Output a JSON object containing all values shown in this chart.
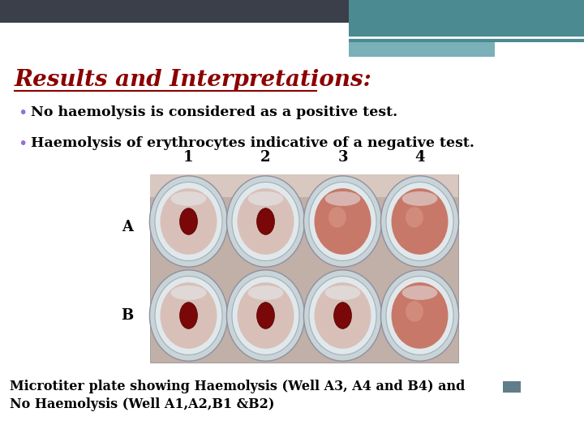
{
  "title": "Results and Interpretations:",
  "title_color": "#8B0000",
  "title_fontsize": 20,
  "bullet1": "No haemolysis is considered as a positive test.",
  "bullet2": "Haemolysis of erythrocytes indicative of a negative test.",
  "bullet_fontsize": 12.5,
  "bullet_color": "#000000",
  "bullet_dot_color": "#9370DB",
  "col_labels": [
    "1",
    "2",
    "3",
    "4"
  ],
  "row_labels": [
    "A",
    "B"
  ],
  "caption_line1": "Microtiter plate showing Haemolysis (Well A3, A4 and B4) and",
  "caption_line2": "No Haemolysis (Well A1,A2,B1 &B2)",
  "caption_fontsize": 11.5,
  "header_dark": "#3a3f4a",
  "header_teal1": "#4a8a90",
  "header_teal2": "#7ab0b8",
  "header_white_line": "#ffffff",
  "well_configs": [
    [
      false,
      false,
      true,
      true
    ],
    [
      false,
      false,
      false,
      true
    ]
  ],
  "plate_bg": "#c8b0a8",
  "well_outer": "#b8c8cc",
  "well_inner_clear": "#d4e0e4",
  "well_content_haemo": "#c87060",
  "well_content_no_haemo": "#c87060",
  "well_button_color": "#8B1010",
  "well_haemo_center": "#d08878"
}
